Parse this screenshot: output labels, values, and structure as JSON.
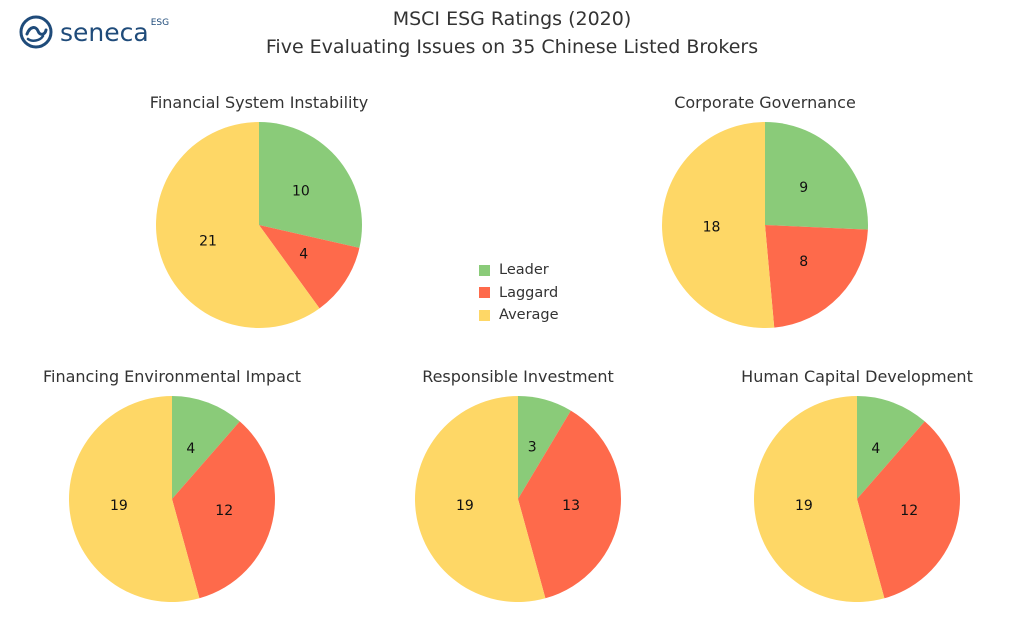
{
  "logo": {
    "name": "seneca",
    "superscript": "ESG",
    "color": "#1f4b7a"
  },
  "header": {
    "title": "MSCI ESG Ratings (2020)",
    "subtitle": "Five Evaluating Issues on 35 Chinese Listed Brokers"
  },
  "legend": {
    "items": [
      {
        "label": "Leader",
        "color": "#8acb79"
      },
      {
        "label": "Laggard",
        "color": "#fe6a4b"
      },
      {
        "label": "Average",
        "color": "#fed766"
      }
    ]
  },
  "chart_data": [
    {
      "type": "pie",
      "title": "Financial System Instability",
      "labels": [
        "Leader",
        "Laggard",
        "Average"
      ],
      "values": [
        10,
        4,
        21
      ],
      "colors": [
        "#8acb79",
        "#fe6a4b",
        "#fed766"
      ],
      "start": "12 o'clock",
      "direction": "clockwise"
    },
    {
      "type": "pie",
      "title": "Corporate Governance",
      "labels": [
        "Leader",
        "Laggard",
        "Average"
      ],
      "values": [
        9,
        8,
        18
      ],
      "colors": [
        "#8acb79",
        "#fe6a4b",
        "#fed766"
      ],
      "start": "12 o'clock",
      "direction": "clockwise"
    },
    {
      "type": "pie",
      "title": "Financing Environmental Impact",
      "labels": [
        "Leader",
        "Laggard",
        "Average"
      ],
      "values": [
        4,
        12,
        19
      ],
      "colors": [
        "#8acb79",
        "#fe6a4b",
        "#fed766"
      ],
      "start": "12 o'clock",
      "direction": "clockwise"
    },
    {
      "type": "pie",
      "title": "Responsible Investment",
      "labels": [
        "Leader",
        "Laggard",
        "Average"
      ],
      "values": [
        3,
        13,
        19
      ],
      "colors": [
        "#8acb79",
        "#fe6a4b",
        "#fed766"
      ],
      "start": "12 o'clock",
      "direction": "clockwise"
    },
    {
      "type": "pie",
      "title": "Human Capital Development",
      "labels": [
        "Leader",
        "Laggard",
        "Average"
      ],
      "values": [
        4,
        12,
        19
      ],
      "colors": [
        "#8acb79",
        "#fe6a4b",
        "#fed766"
      ],
      "start": "12 o'clock",
      "direction": "clockwise"
    }
  ]
}
